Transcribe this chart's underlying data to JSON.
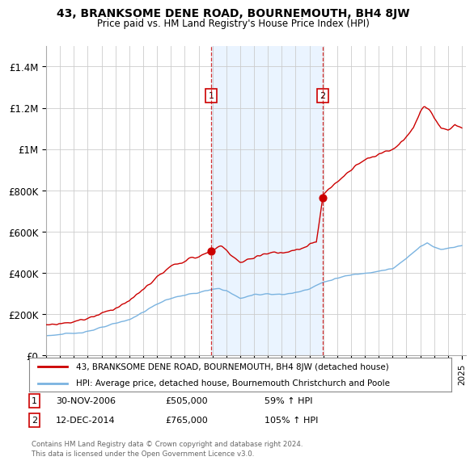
{
  "title": "43, BRANKSOME DENE ROAD, BOURNEMOUTH, BH4 8JW",
  "subtitle": "Price paid vs. HM Land Registry's House Price Index (HPI)",
  "ylim": [
    0,
    1500000
  ],
  "yticks": [
    0,
    200000,
    400000,
    600000,
    800000,
    1000000,
    1200000,
    1400000
  ],
  "ytick_labels": [
    "£0",
    "£200K",
    "£400K",
    "£600K",
    "£800K",
    "£1M",
    "£1.2M",
    "£1.4M"
  ],
  "t1_year": 2006.917,
  "t1_price": 505000,
  "t2_year": 2014.958,
  "t2_price": 765000,
  "house_color": "#cc0000",
  "hpi_color": "#7ab3e0",
  "shade_color": "#ddeeff",
  "marker_color": "#cc0000",
  "vline_color": "#cc0000",
  "grid_color": "#cccccc",
  "background_color": "#ffffff",
  "legend_house": "43, BRANKSOME DENE ROAD, BOURNEMOUTH, BH4 8JW (detached house)",
  "legend_hpi": "HPI: Average price, detached house, Bournemouth Christchurch and Poole",
  "footnote": "Contains HM Land Registry data © Crown copyright and database right 2024.\nThis data is licensed under the Open Government Licence v3.0.",
  "x_start_year": 1995,
  "x_end_year": 2025
}
